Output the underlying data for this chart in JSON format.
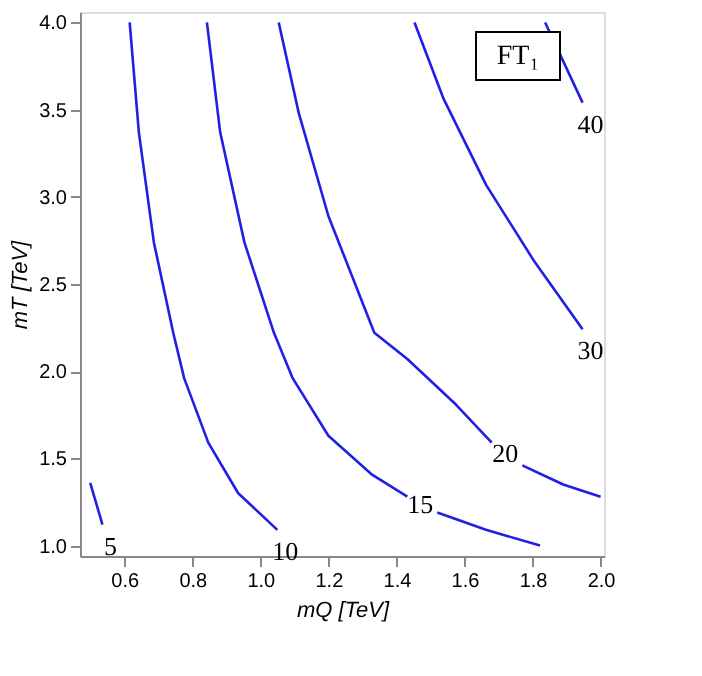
{
  "chart_data": {
    "type": "line",
    "xlabel": "mQ [TeV]",
    "ylabel": "mT [TeV]",
    "xlim": [
      0.47,
      2.01
    ],
    "ylim": [
      0.94,
      4.06
    ],
    "xticks": [
      0.6,
      0.8,
      {
        "value": 1.0,
        "label": "1.0"
      },
      1.2,
      1.4,
      1.6,
      1.8,
      {
        "value": 2.0,
        "label": "2.0"
      }
    ],
    "yticks": [
      {
        "value": 1.0,
        "label": "1.0"
      },
      1.5,
      {
        "value": 2.0,
        "label": "2.0"
      },
      2.5,
      {
        "value": 3.0,
        "label": "3.0"
      },
      3.5,
      {
        "value": 4.0,
        "label": "4.0"
      }
    ],
    "grid": false,
    "marker": "none",
    "line_style": "solid",
    "series": [
      {
        "name": "5",
        "color": "#1f1fe6",
        "x": [
          0.5,
          0.536
        ],
        "values": [
          1.36,
          1.12
        ]
      },
      {
        "name": "10",
        "color": "#1f1fe6",
        "x": [
          0.616,
          0.643,
          0.687,
          0.744,
          0.776,
          0.847,
          0.935,
          1.05
        ],
        "values": [
          4.0,
          3.37,
          2.74,
          2.22,
          1.96,
          1.59,
          1.3,
          1.09
        ]
      },
      {
        "name": "15",
        "color": "#1f1fe6",
        "x": [
          0.843,
          0.882,
          0.953,
          1.04,
          1.095,
          1.2,
          1.326,
          1.432,
          1.47,
          1.52,
          1.663,
          1.822
        ],
        "values": [
          4.0,
          3.37,
          2.74,
          2.22,
          1.96,
          1.63,
          1.41,
          1.28,
          null,
          1.19,
          1.09,
          1.0
        ]
      },
      {
        "name": "20",
        "color": "#1f1fe6",
        "x": [
          1.054,
          1.113,
          1.2,
          1.335,
          1.432,
          1.574,
          1.68,
          1.72,
          1.77,
          1.89,
          2.0
        ],
        "values": [
          4.0,
          3.48,
          2.89,
          2.22,
          2.07,
          1.81,
          1.59,
          null,
          1.46,
          1.35,
          1.28
        ]
      },
      {
        "name": "30",
        "color": "#1f1fe6",
        "x": [
          1.453,
          1.539,
          1.663,
          1.805,
          1.947
        ],
        "values": [
          4.0,
          3.56,
          3.07,
          2.63,
          2.24
        ]
      },
      {
        "name": "40",
        "color": "#1f1fe6",
        "x": [
          1.837,
          1.947
        ],
        "values": [
          4.0,
          3.54
        ]
      }
    ],
    "annotations": [
      "FT₁"
    ]
  }
}
